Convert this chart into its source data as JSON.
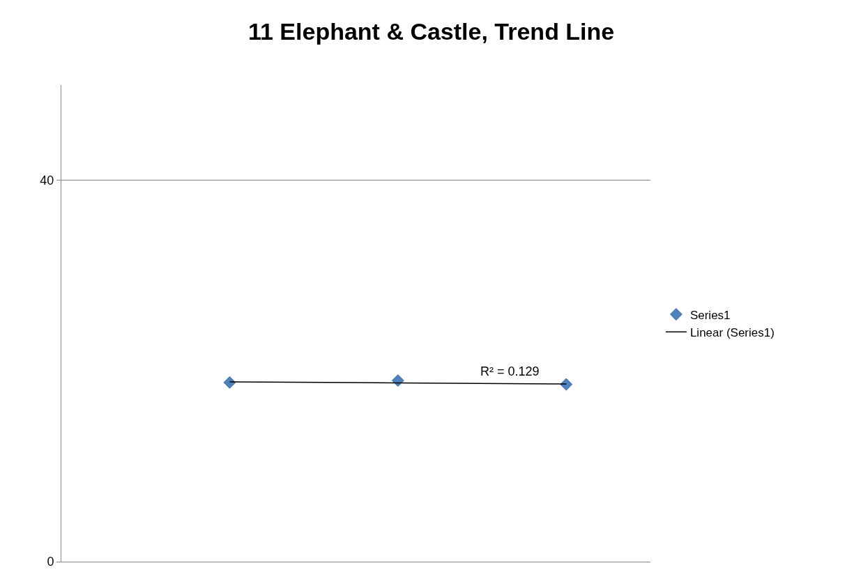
{
  "chart_data": {
    "type": "scatter",
    "title": "11 Elephant & Castle, Trend Line",
    "categories": [
      null,
      null,
      null
    ],
    "series": [
      {
        "name": "Series1",
        "color": "#4f81bd",
        "marker": "diamond",
        "values": [
          18.8,
          19.0,
          18.6
        ]
      },
      {
        "name": "Linear (Series1)",
        "type": "line",
        "color": "#000000",
        "line_style": "solid",
        "marker": "none",
        "values": [
          18.86,
          18.75,
          18.64
        ]
      }
    ],
    "ylim": [
      0,
      50
    ],
    "yticks": [
      0,
      40
    ],
    "grid": "y",
    "legend": "right",
    "annotations": [
      "R² = 0.129"
    ]
  }
}
